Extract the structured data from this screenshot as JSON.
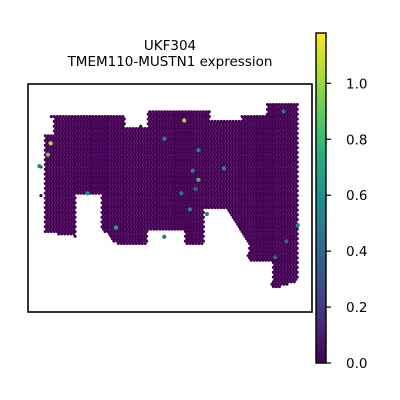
{
  "chart_data": {
    "type": "scatter",
    "title": "UKF304",
    "subtitle": "TMEM110-MUSTN1 expression",
    "xlabel": "",
    "ylabel": "",
    "grid": false,
    "legend": "none",
    "colorbar": {
      "cmap": "viridis",
      "range": [
        0.0,
        1.18
      ],
      "ticks": [
        0.0,
        0.2,
        0.4,
        0.6,
        0.8,
        1.0
      ],
      "tick_labels": [
        "0.0",
        "0.2",
        "0.4",
        "0.6",
        "0.8",
        "1.0"
      ]
    },
    "background_value": 0.0,
    "background_color": "#440154",
    "highlighted_spots": [
      {
        "x": 0.08,
        "y": 0.74,
        "value": 1.05
      },
      {
        "x": 0.07,
        "y": 0.69,
        "value": 0.92
      },
      {
        "x": 0.04,
        "y": 0.64,
        "value": 0.55
      },
      {
        "x": 0.55,
        "y": 0.84,
        "value": 1.02
      },
      {
        "x": 0.48,
        "y": 0.76,
        "value": 0.52
      },
      {
        "x": 0.6,
        "y": 0.71,
        "value": 0.5
      },
      {
        "x": 0.58,
        "y": 0.62,
        "value": 0.52
      },
      {
        "x": 0.6,
        "y": 0.58,
        "value": 0.82
      },
      {
        "x": 0.59,
        "y": 0.54,
        "value": 0.35
      },
      {
        "x": 0.54,
        "y": 0.52,
        "value": 0.48
      },
      {
        "x": 0.57,
        "y": 0.45,
        "value": 0.5
      },
      {
        "x": 0.63,
        "y": 0.43,
        "value": 0.48
      },
      {
        "x": 0.69,
        "y": 0.63,
        "value": 0.55
      },
      {
        "x": 0.21,
        "y": 0.52,
        "value": 0.58
      },
      {
        "x": 0.31,
        "y": 0.37,
        "value": 0.7
      },
      {
        "x": 0.48,
        "y": 0.33,
        "value": 0.45
      },
      {
        "x": 0.9,
        "y": 0.88,
        "value": 0.45
      },
      {
        "x": 0.95,
        "y": 0.38,
        "value": 0.58
      },
      {
        "x": 0.91,
        "y": 0.31,
        "value": 0.4
      },
      {
        "x": 0.87,
        "y": 0.24,
        "value": 0.4
      }
    ]
  }
}
